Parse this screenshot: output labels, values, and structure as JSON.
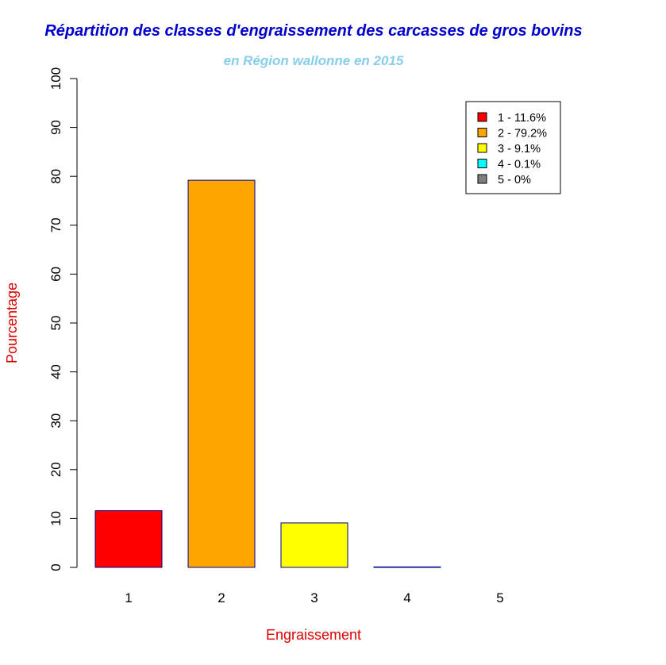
{
  "chart_data": {
    "type": "bar",
    "title": "Répartition des classes d'engraissement des carcasses de gros bovins",
    "subtitle": "en Région wallonne en 2015",
    "xlabel": "Engraissement",
    "ylabel": "Pourcentage",
    "categories": [
      "1",
      "2",
      "3",
      "4",
      "5"
    ],
    "values": [
      11.6,
      79.2,
      9.1,
      0.1,
      0
    ],
    "ylim": [
      0,
      100
    ],
    "yticks": [
      "0",
      "10",
      "20",
      "30",
      "40",
      "50",
      "60",
      "70",
      "80",
      "90",
      "100"
    ],
    "colors": [
      "#ff0000",
      "#ffa500",
      "#ffff00",
      "#00ffff",
      "#808080"
    ],
    "bar_border_color": "#00008b",
    "legend": {
      "placement": "top-right",
      "entries": [
        "1 - 11.6%",
        "2 - 79.2%",
        "3 - 9.1%",
        "4 - 0.1%",
        "5 - 0%"
      ]
    },
    "title_color": "#0000cd",
    "subtitle_color": "#87ceeb",
    "axis_label_color": "#dd0000",
    "grid": false
  }
}
